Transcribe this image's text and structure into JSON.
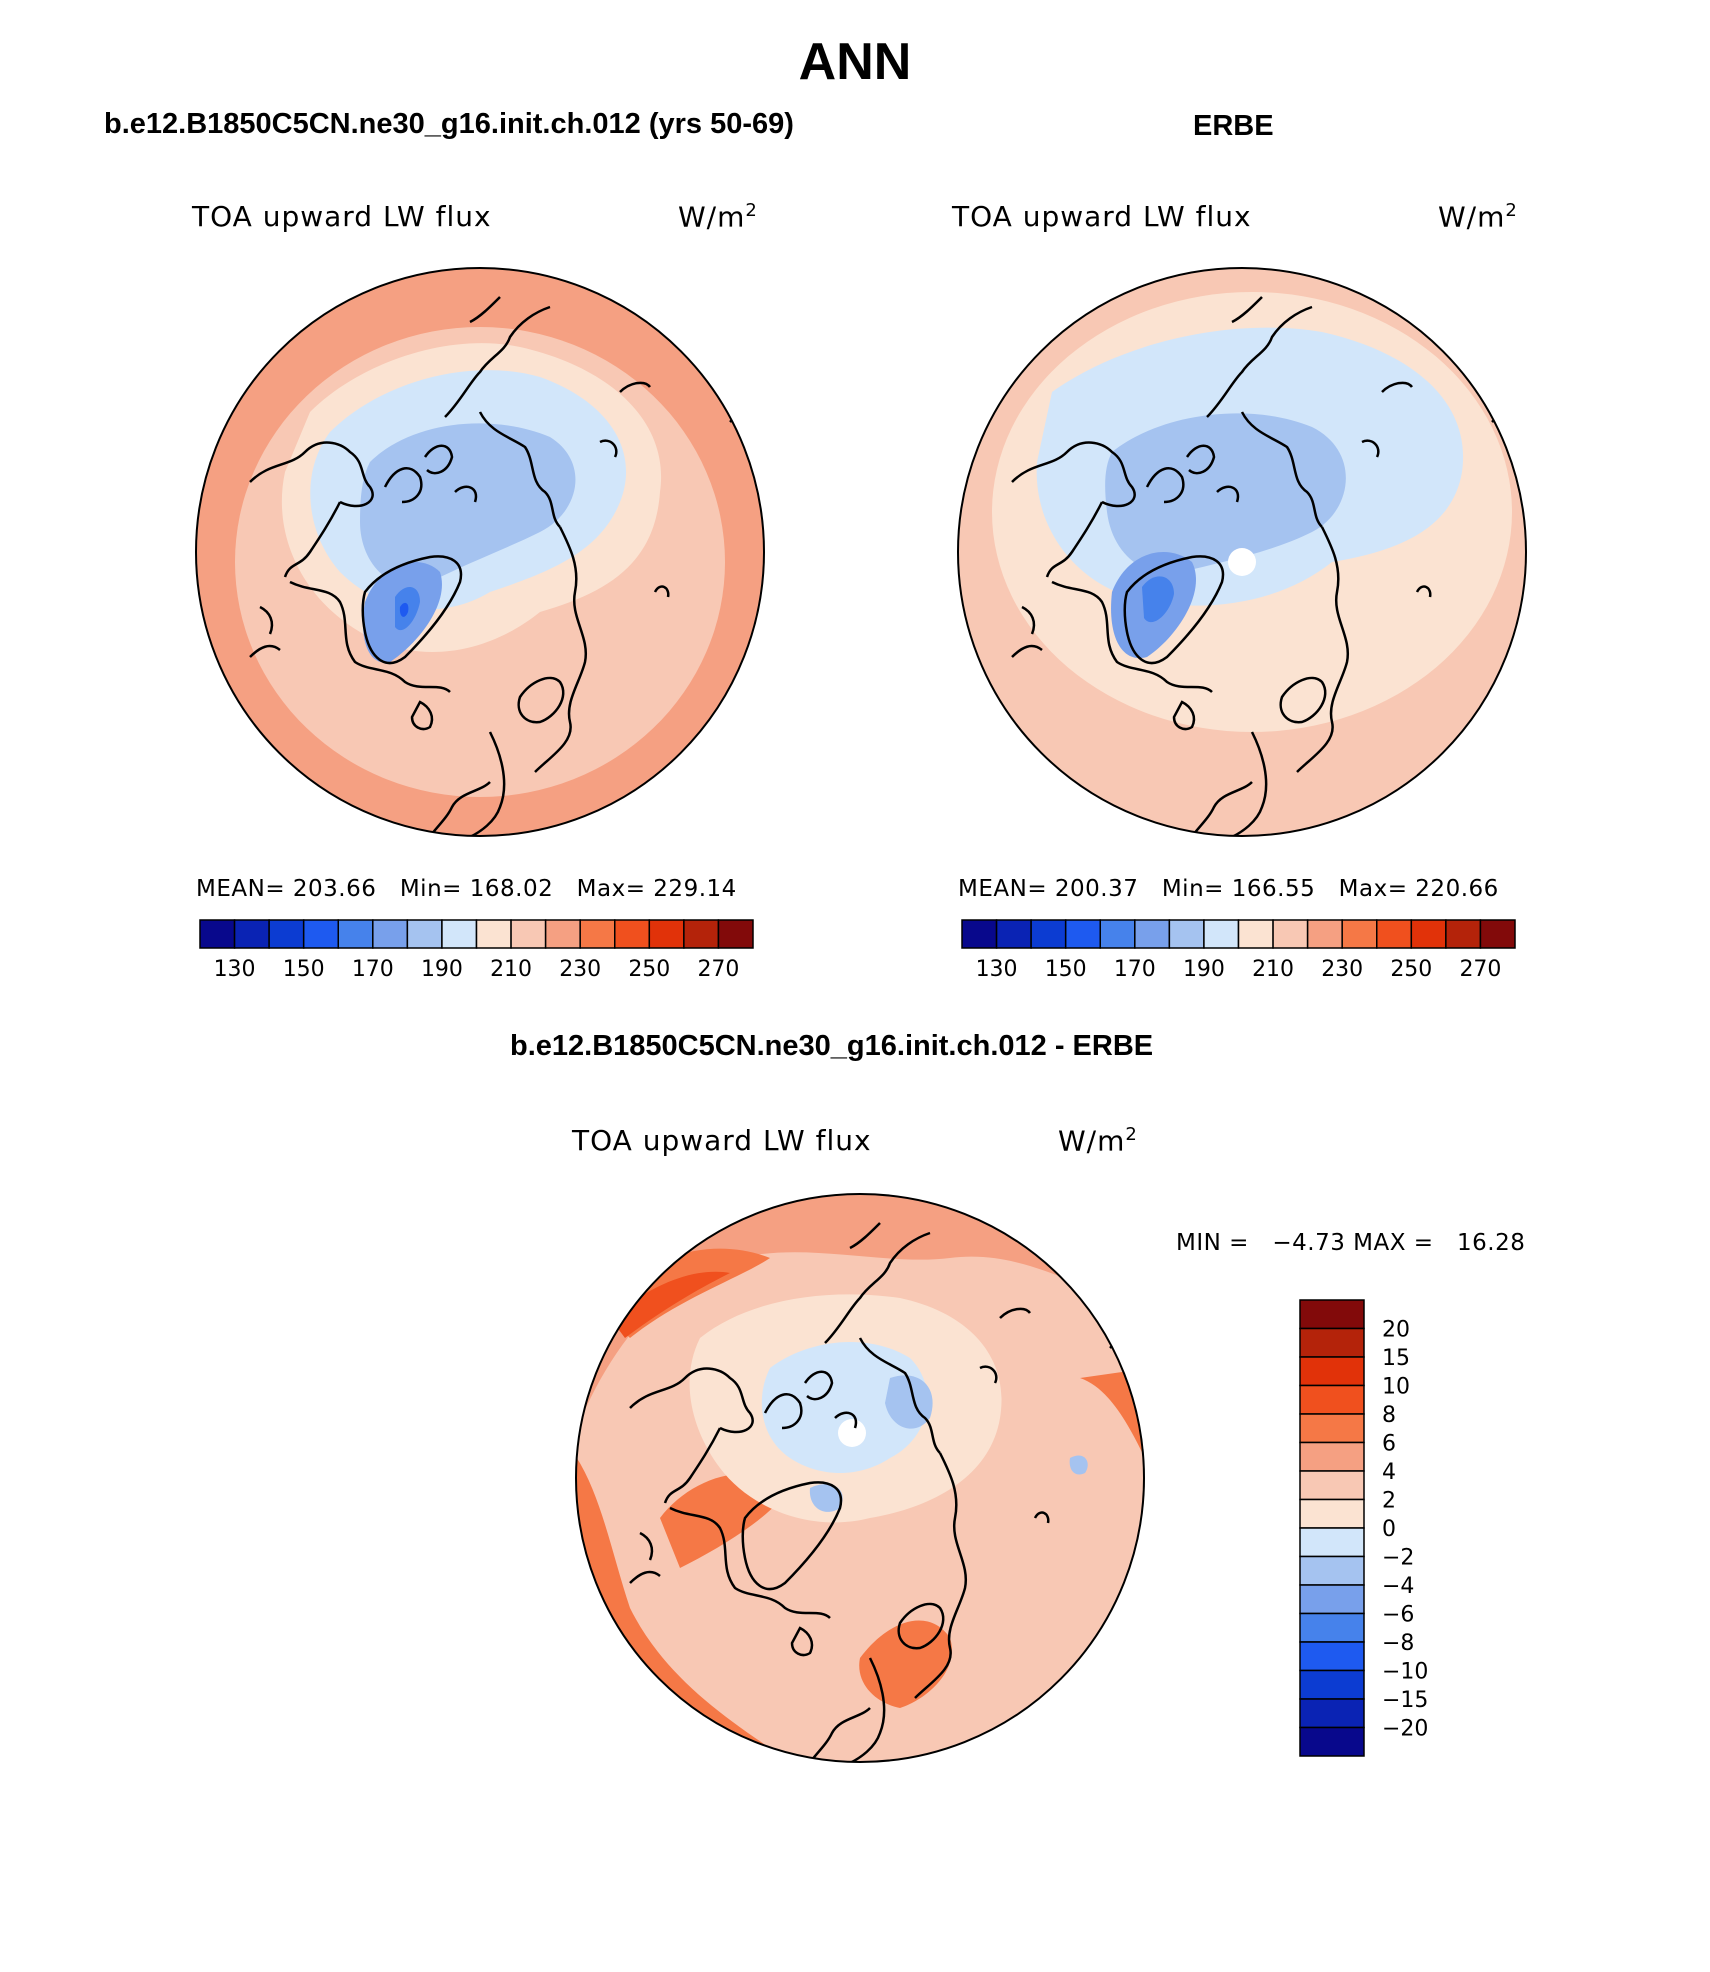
{
  "title": "ANN",
  "panels": [
    {
      "title": "b.e12.B1850C5CN.ne30_g16.init.ch.012 (yrs 50-69)",
      "variable": "TOA upward LW flux",
      "units": "W/m",
      "units_sup": "2",
      "stats": {
        "mean_label": "MEAN=",
        "mean": "203.66",
        "min_label": "Min=",
        "min": "168.02",
        "max_label": "Max=",
        "max": "229.14"
      }
    },
    {
      "title": "ERBE",
      "variable": "TOA upward LW flux",
      "units": "W/m",
      "units_sup": "2",
      "stats": {
        "mean_label": "MEAN=",
        "mean": "200.37",
        "min_label": "Min=",
        "min": "166.55",
        "max_label": "Max=",
        "max": "220.66"
      }
    },
    {
      "title": "b.e12.B1850C5CN.ne30_g16.init.ch.012 - ERBE",
      "variable": "TOA upward LW flux",
      "units": "W/m",
      "units_sup": "2",
      "minmax": "MIN =   −4.73 MAX =   16.28"
    }
  ],
  "colorbar_abs": {
    "tick_labels": [
      "130",
      "150",
      "170",
      "190",
      "210",
      "230",
      "250",
      "270"
    ],
    "colors": [
      "#08088c",
      "#0a23b4",
      "#0c3cd2",
      "#1e5af0",
      "#4682eb",
      "#78a0eb",
      "#a5c3f0",
      "#d2e6fa",
      "#fbe3d2",
      "#f8c8b4",
      "#f5a082",
      "#f57846",
      "#f0501e",
      "#e13209",
      "#b4230a",
      "#820a0a"
    ]
  },
  "colorbar_diff": {
    "tick_labels": [
      "20",
      "15",
      "10",
      "8",
      "6",
      "4",
      "2",
      "0",
      "−2",
      "−4",
      "−6",
      "−8",
      "−10",
      "−15",
      "−20"
    ],
    "colors": [
      "#820a0a",
      "#b4230a",
      "#e13209",
      "#f0501e",
      "#f57846",
      "#f5a082",
      "#f8c8b4",
      "#fbe3d2",
      "#d2e6fa",
      "#a5c3f0",
      "#78a0eb",
      "#4682eb",
      "#1e5af0",
      "#0c3cd2",
      "#0a23b4",
      "#08088c"
    ]
  }
}
